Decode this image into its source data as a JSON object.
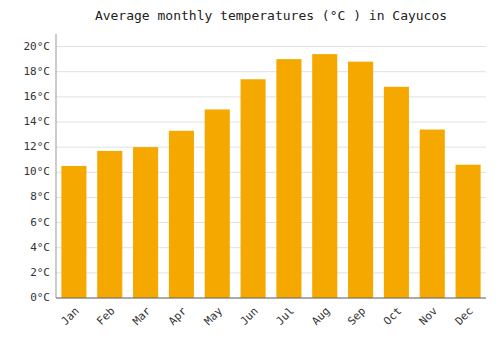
{
  "chart_data": {
    "type": "bar",
    "title": "Average monthly temperatures (°C ) in Cayucos",
    "categories": [
      "Jan",
      "Feb",
      "Mar",
      "Apr",
      "May",
      "Jun",
      "Jul",
      "Aug",
      "Sep",
      "Oct",
      "Nov",
      "Dec"
    ],
    "values": [
      10.5,
      11.7,
      12.0,
      13.3,
      15.0,
      17.4,
      19.0,
      19.4,
      18.8,
      16.8,
      13.4,
      10.6
    ],
    "color": "#F5A800",
    "ylim": [
      0,
      21
    ],
    "yticks": [
      {
        "value": 0,
        "label": "0°C"
      },
      {
        "value": 2,
        "label": "2°C"
      },
      {
        "value": 4,
        "label": "4°C"
      },
      {
        "value": 6,
        "label": "6°C"
      },
      {
        "value": 8,
        "label": "8°C"
      },
      {
        "value": 10,
        "label": "10°C"
      },
      {
        "value": 12,
        "label": "12°C"
      },
      {
        "value": 14,
        "label": "14°C"
      },
      {
        "value": 16,
        "label": "16°C"
      },
      {
        "value": 18,
        "label": "18°C"
      },
      {
        "value": 20,
        "label": "20°C"
      }
    ],
    "grid": true
  }
}
